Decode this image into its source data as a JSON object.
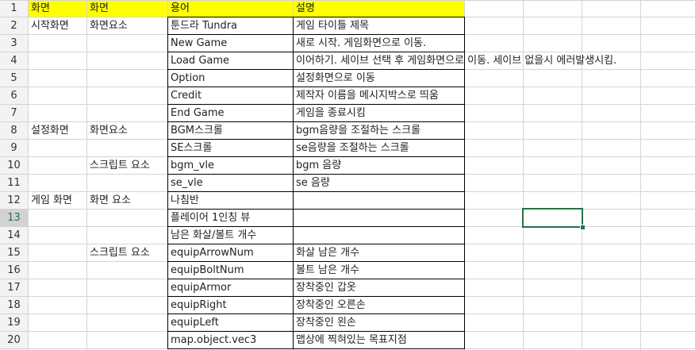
{
  "row_numbers": [
    "1",
    "2",
    "3",
    "4",
    "5",
    "6",
    "7",
    "8",
    "9",
    "10",
    "11",
    "12",
    "13",
    "14",
    "15",
    "16",
    "17",
    "18",
    "19",
    "20"
  ],
  "selected_row": "13",
  "header": {
    "a": "화면",
    "b": "화면",
    "c": "용어",
    "d": "설명"
  },
  "rows": [
    {
      "a": "시작화면",
      "b": "화면요소",
      "c": "툰드라 Tundra",
      "d": "게임 타이틀 제목"
    },
    {
      "a": "",
      "b": "",
      "c": "New Game",
      "d": "새로 시작. 게임화면으로 이동."
    },
    {
      "a": "",
      "b": "",
      "c": "Load Game",
      "d": "이어하기. 세이브 선택 후 게임화면으로 이동. 세이브 없을시 에러발생시킴."
    },
    {
      "a": "",
      "b": "",
      "c": "Option",
      "d": "설정화면으로 이동"
    },
    {
      "a": "",
      "b": "",
      "c": "Credit",
      "d": "제작자 이름을 메시지박스로 띄움"
    },
    {
      "a": "",
      "b": "",
      "c": "End Game",
      "d": "게임을 종료시킴"
    },
    {
      "a": "설정화면",
      "b": "화면요소",
      "c": "BGM스크롤",
      "d": "bgm음량을 조절하는 스크롤"
    },
    {
      "a": "",
      "b": "",
      "c": "SE스크롤",
      "d": "se음량을 조절하는 스크롤"
    },
    {
      "a": "",
      "b": "스크립트 요소",
      "c": "bgm_vle",
      "d": "bgm 음량"
    },
    {
      "a": "",
      "b": "",
      "c": "se_vle",
      "d": "se 음량"
    },
    {
      "a": "게임 화면",
      "b": "화면 요소",
      "c": "나침반",
      "d": ""
    },
    {
      "a": "",
      "b": "",
      "c": "플레이어 1인칭 뷰",
      "d": ""
    },
    {
      "a": "",
      "b": "",
      "c": "남은 화살/볼트 개수",
      "d": ""
    },
    {
      "a": "",
      "b": "스크립트 요소",
      "c": "equipArrowNum",
      "d": "화살 남은 개수"
    },
    {
      "a": "",
      "b": "",
      "c": "equipBoltNum",
      "d": "볼트 남은 개수"
    },
    {
      "a": "",
      "b": "",
      "c": "equipArmor",
      "d": "장착중인 갑옷"
    },
    {
      "a": "",
      "b": "",
      "c": "equipRight",
      "d": "장착중인 오른손"
    },
    {
      "a": "",
      "b": "",
      "c": "equipLeft",
      "d": "장착중인 왼손"
    },
    {
      "a": "",
      "b": "",
      "c": "map.object.vec3",
      "d": "맵상에 찍혀있는 목표지점"
    }
  ],
  "colors": {
    "header_fill": "#ffff00",
    "selection": "#217346",
    "grid": "#d4d4d4",
    "row_header_bg": "#f3f3f3"
  }
}
